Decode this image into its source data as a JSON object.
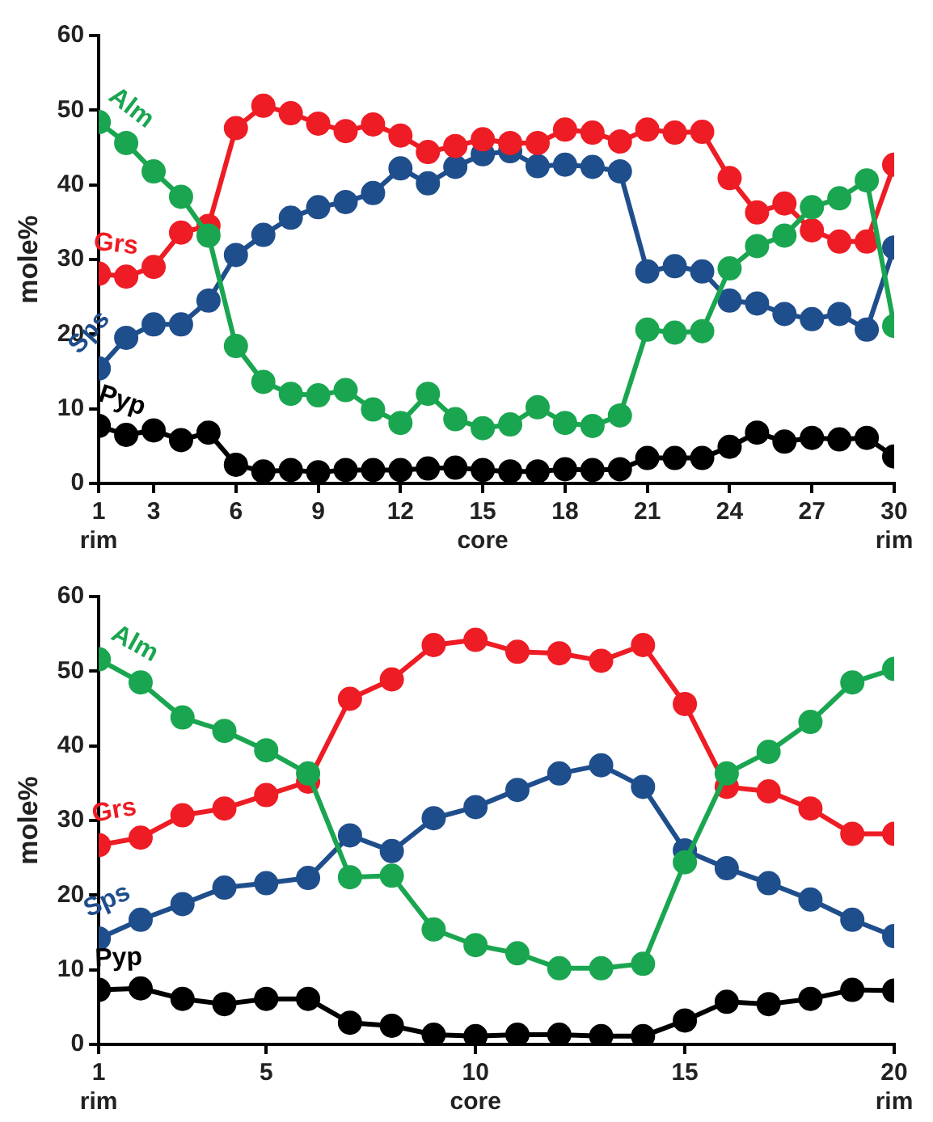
{
  "chart_data": [
    {
      "type": "line",
      "ylabel": "mole%",
      "marker": "circle",
      "x": [
        1,
        2,
        3,
        4,
        5,
        6,
        7,
        8,
        9,
        10,
        11,
        12,
        13,
        14,
        15,
        16,
        17,
        18,
        19,
        20,
        21,
        22,
        23,
        24,
        25,
        26,
        27,
        28,
        29,
        30
      ],
      "xlim": [
        1,
        30
      ],
      "xticks": [
        {
          "value": 1,
          "label": "1\nrim"
        },
        3,
        6,
        9,
        12,
        {
          "value": 15,
          "label": "15\ncore"
        },
        18,
        21,
        24,
        27,
        {
          "value": 30,
          "label": "30\nrim"
        }
      ],
      "ylim": [
        0,
        60
      ],
      "yticks": [
        0,
        10,
        20,
        30,
        40,
        50,
        60
      ],
      "series": [
        {
          "name": "Alm",
          "color": "#1aa650",
          "values": [
            48.4,
            45.6,
            41.8,
            38.4,
            33.2,
            18.4,
            13.6,
            12.0,
            11.8,
            12.5,
            9.9,
            8.1,
            12.0,
            8.6,
            7.4,
            7.9,
            10.2,
            8.1,
            7.7,
            9.1,
            20.6,
            20.2,
            20.4,
            28.8,
            31.8,
            33.2,
            37.0,
            38.2,
            40.6,
            21.1
          ]
        },
        {
          "name": "Grs",
          "color": "#ee1c24",
          "values": [
            28.1,
            27.7,
            29.0,
            33.6,
            34.5,
            47.6,
            50.6,
            49.6,
            48.2,
            47.2,
            48.1,
            46.6,
            44.4,
            45.2,
            46.1,
            45.6,
            45.6,
            47.4,
            47.0,
            45.8,
            47.4,
            47.0,
            47.1,
            40.9,
            36.3,
            37.5,
            33.9,
            32.4,
            32.4,
            42.7
          ]
        },
        {
          "name": "Sps",
          "color": "#1f4e8c",
          "values": [
            15.4,
            19.5,
            21.3,
            21.3,
            24.5,
            30.6,
            33.3,
            35.6,
            37.0,
            37.7,
            38.9,
            42.2,
            40.2,
            42.4,
            44.1,
            44.5,
            42.5,
            42.7,
            42.4,
            41.8,
            28.4,
            29.1,
            28.4,
            24.5,
            24.1,
            22.7,
            22.0,
            22.7,
            20.6,
            31.6
          ]
        },
        {
          "name": "Pyp",
          "color": "#000000",
          "values": [
            7.7,
            6.5,
            7.1,
            5.8,
            6.8,
            2.5,
            1.6,
            1.8,
            1.5,
            1.8,
            1.8,
            1.8,
            2.0,
            2.1,
            1.8,
            1.6,
            1.6,
            1.9,
            1.8,
            1.9,
            3.4,
            3.4,
            3.4,
            4.9,
            6.8,
            5.6,
            6.1,
            5.9,
            6.1,
            3.6
          ]
        }
      ]
    },
    {
      "type": "line",
      "ylabel": "mole%",
      "marker": "circle",
      "x": [
        1,
        2,
        3,
        4,
        5,
        6,
        7,
        8,
        9,
        10,
        11,
        12,
        13,
        14,
        15,
        16,
        17,
        18,
        19,
        20
      ],
      "xlim": [
        1,
        20
      ],
      "xticks": [
        {
          "value": 1,
          "label": "1\nrim"
        },
        5,
        {
          "value": 10,
          "label": "10\ncore"
        },
        15,
        {
          "value": 20,
          "label": "20\nrim"
        }
      ],
      "ylim": [
        0,
        60
      ],
      "yticks": [
        0,
        10,
        20,
        30,
        40,
        50,
        60
      ],
      "series": [
        {
          "name": "Alm",
          "color": "#1aa650",
          "values": [
            51.6,
            48.5,
            43.8,
            42.0,
            39.4,
            36.3,
            22.4,
            22.6,
            15.4,
            13.3,
            12.2,
            10.2,
            10.2,
            10.8,
            24.4,
            36.3,
            39.2,
            43.2,
            48.5,
            50.3
          ]
        },
        {
          "name": "Grs",
          "color": "#ee1c24",
          "values": [
            26.7,
            27.7,
            30.7,
            31.6,
            33.4,
            35.2,
            46.3,
            48.9,
            53.5,
            54.2,
            52.6,
            52.4,
            51.4,
            53.5,
            45.6,
            34.5,
            33.9,
            31.6,
            28.2,
            28.2
          ]
        },
        {
          "name": "Sps",
          "color": "#1f4e8c",
          "values": [
            14.2,
            16.7,
            18.8,
            21.0,
            21.6,
            22.3,
            28.0,
            25.9,
            30.3,
            31.8,
            34.1,
            36.3,
            37.4,
            34.5,
            26.0,
            23.6,
            21.6,
            19.4,
            16.7,
            14.5
          ]
        },
        {
          "name": "Pyp",
          "color": "#000000",
          "values": [
            7.3,
            7.5,
            6.1,
            5.4,
            6.1,
            6.1,
            2.9,
            2.5,
            1.3,
            1.1,
            1.3,
            1.3,
            1.1,
            1.1,
            3.2,
            5.7,
            5.4,
            6.1,
            7.3,
            7.2
          ]
        }
      ]
    }
  ]
}
